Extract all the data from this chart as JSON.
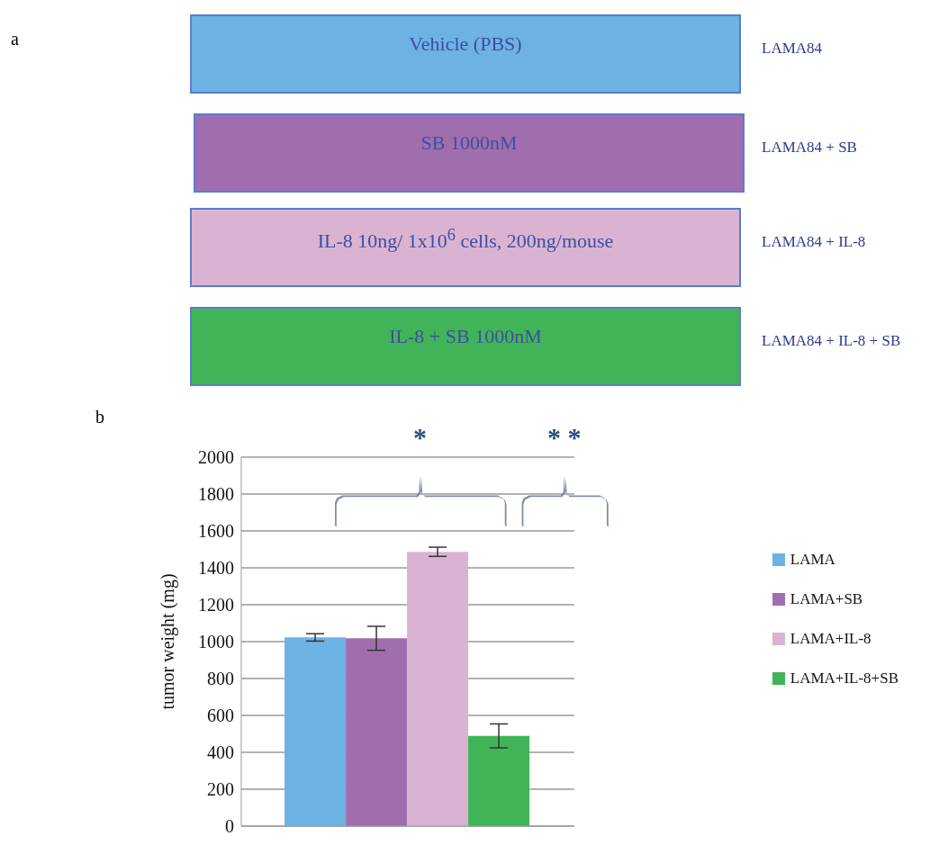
{
  "chart_data": [
    {
      "type": "other",
      "title": "a",
      "annotations": [
        "Vehicle (PBS)",
        "SB 1000nM",
        "IL-8 10ng/ 1x10$^{6}$ cells, 200ng/mouse",
        "IL-8 + SB 1000nM",
        "LAMA84",
        "LAMA84 + SB",
        "LAMA84 + IL-8",
        "LAMA84 + IL-8 + SB"
      ]
    },
    {
      "type": "bar",
      "title": "b",
      "ylabel": "tumor weight (mg)",
      "categories": [
        null
      ],
      "series": [
        {
          "name": "LAMA",
          "color": "#6cb2e2",
          "values": [
            1023
          ],
          "errors": [
            20
          ]
        },
        {
          "name": "LAMA+SB",
          "color": "#a06eaf",
          "values": [
            1018
          ],
          "errors": [
            65
          ]
        },
        {
          "name": "LAMA+IL-8",
          "color": "#dab3d2",
          "values": [
            1487
          ],
          "errors": [
            25
          ]
        },
        {
          "name": "LAMA+IL-8+SB",
          "color": "#41b457",
          "values": [
            489
          ],
          "errors": [
            65
          ]
        }
      ],
      "ylim": [
        0,
        2000
      ],
      "yticks": [
        0,
        200,
        400,
        600,
        800,
        1000,
        1200,
        1400,
        1600,
        1800,
        2000
      ],
      "grid": "y",
      "legend": "right",
      "annotations": [
        "*",
        "* *"
      ]
    }
  ]
}
